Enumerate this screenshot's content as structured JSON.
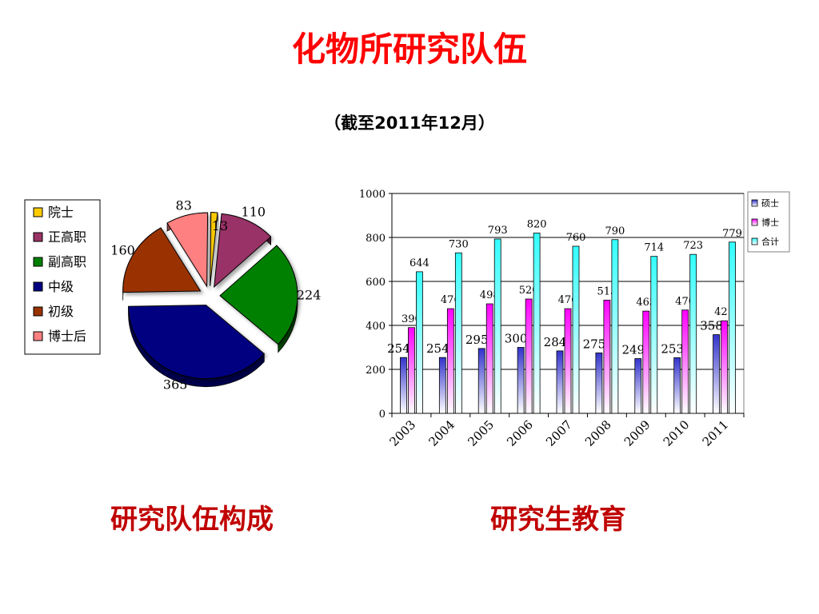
{
  "header": {
    "title": "化物所研究队伍",
    "subtitle": "（截至2011年12月）"
  },
  "captions": {
    "pie": "研究队伍构成",
    "bar": "研究生教育"
  },
  "chart_data": [
    {
      "type": "pie",
      "title": "",
      "legend_position": "left",
      "slices": [
        {
          "label": "院士",
          "value": 13,
          "color": "#ffcc00"
        },
        {
          "label": "正高职",
          "value": 110,
          "color": "#993366"
        },
        {
          "label": "副高职",
          "value": 224,
          "color": "#008000"
        },
        {
          "label": "中级",
          "value": 365,
          "color": "#000080"
        },
        {
          "label": "初级",
          "value": 160,
          "color": "#993300"
        },
        {
          "label": "博士后",
          "value": 83,
          "color": "#ff8080"
        }
      ]
    },
    {
      "type": "bar",
      "title": "",
      "xlabel": "",
      "ylabel": "",
      "ylim": [
        0,
        1000
      ],
      "yticks": [
        0,
        200,
        400,
        600,
        800,
        1000
      ],
      "grid": true,
      "legend_position": "top-right",
      "categories": [
        "2003",
        "2004",
        "2005",
        "2006",
        "2007",
        "2008",
        "2009",
        "2010",
        "2011"
      ],
      "series": [
        {
          "name": "硕士",
          "color": "#3333cc",
          "values": [
            254,
            254,
            295,
            300,
            284,
            275,
            249,
            253,
            358
          ]
        },
        {
          "name": "博士",
          "color": "#ff00ff",
          "values": [
            390,
            476,
            498,
            520,
            476,
            515,
            465,
            470,
            421
          ]
        },
        {
          "name": "合计",
          "color": "#33ffff",
          "values": [
            644,
            730,
            793,
            820,
            760,
            790,
            714,
            723,
            779
          ]
        }
      ]
    }
  ]
}
